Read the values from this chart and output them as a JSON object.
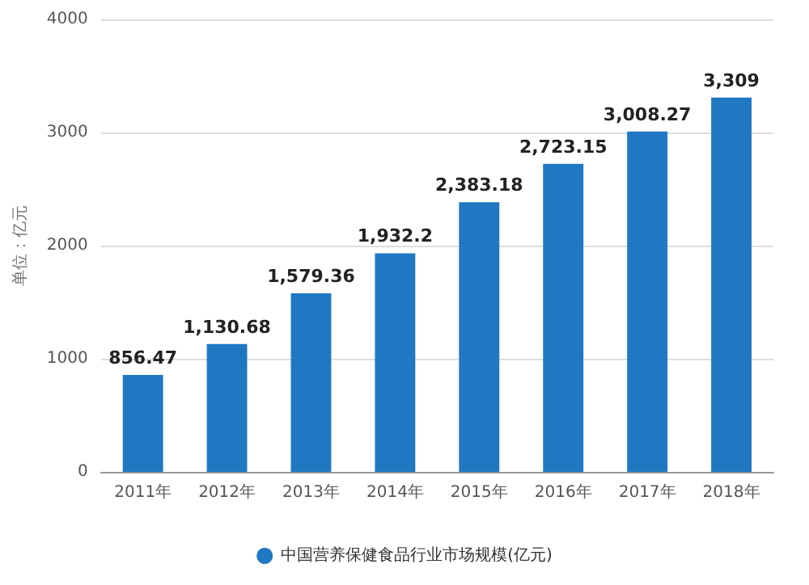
{
  "chart_data": {
    "type": "bar",
    "ylabel": "单位：亿元",
    "categories": [
      "2011年",
      "2012年",
      "2013年",
      "2014年",
      "2015年",
      "2016年",
      "2017年",
      "2018年"
    ],
    "series": [
      {
        "name": "中国营养保健食品行业市场规模(亿元)",
        "color": "#1f78c1",
        "values": [
          856.47,
          1130.68,
          1579.36,
          1932.2,
          2383.18,
          2723.15,
          3008.27,
          3309
        ],
        "value_labels": [
          "856.47",
          "1,130.68",
          "1,579.36",
          "1,932.2",
          "2,383.18",
          "2,723.15",
          "3,008.27",
          "3,309"
        ]
      }
    ],
    "ylim": [
      0,
      4000
    ],
    "yticks": [
      0,
      1000,
      2000,
      3000,
      4000
    ],
    "grid": "y",
    "legend": "bottom"
  }
}
